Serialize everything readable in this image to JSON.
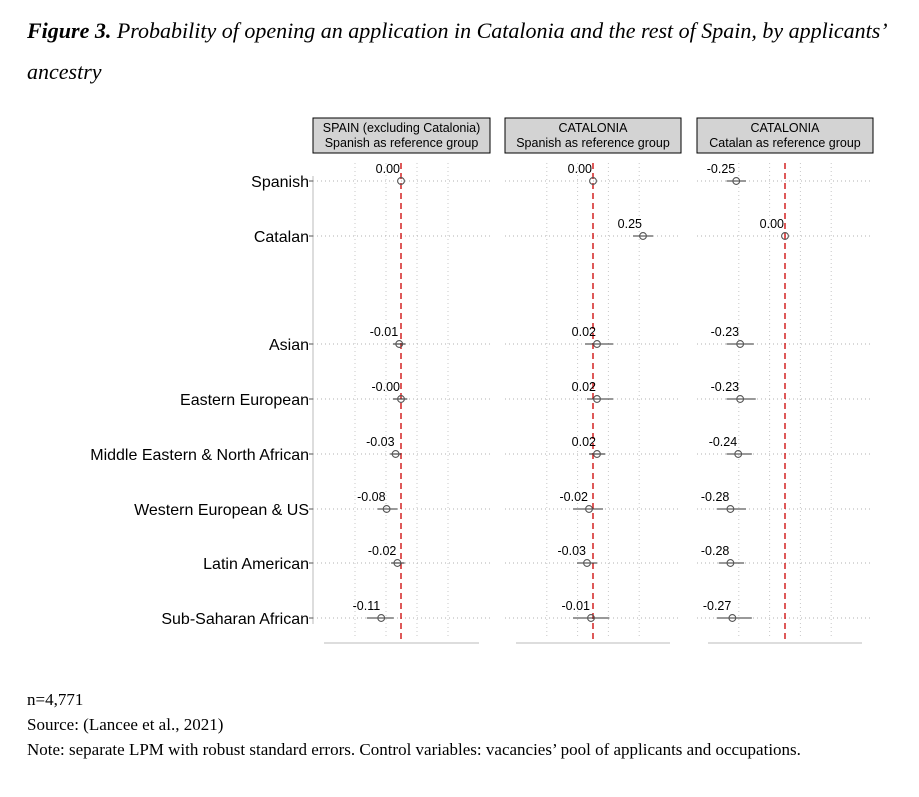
{
  "caption": {
    "label": "Figure 3.",
    "text": "Probability of opening an application in Catalonia and the rest of Spain, by applicants’ ancestry"
  },
  "chart_data": {
    "type": "scatter",
    "subtype": "coefficient-plot",
    "categories": [
      "Spanish",
      "Catalan",
      "Asian",
      "Eastern European",
      "Middle Eastern & North African",
      "Western European & US",
      "Latin American",
      "Sub-Saharan African"
    ],
    "reference_line": 0,
    "reference_line_color": "#cc0000",
    "marker_color": "#555555",
    "panels": [
      {
        "title_line1": "SPAIN (excluding Catalonia)",
        "title_line2": "Spanish as reference group",
        "points": [
          {
            "category": "Spanish",
            "value": 0.0,
            "label": "0.00",
            "ci_low": 0.0,
            "ci_high": 0.0
          },
          {
            "category": "Asian",
            "value": -0.01,
            "label": "-0.01",
            "ci_low": -0.045,
            "ci_high": 0.025
          },
          {
            "category": "Eastern European",
            "value": -0.0,
            "label": "-0.00",
            "ci_low": -0.045,
            "ci_high": 0.035
          },
          {
            "category": "Middle Eastern & North African",
            "value": -0.03,
            "label": "-0.03",
            "ci_low": -0.06,
            "ci_high": 0.0
          },
          {
            "category": "Western European & US",
            "value": -0.08,
            "label": "-0.08",
            "ci_low": -0.13,
            "ci_high": -0.02
          },
          {
            "category": "Latin American",
            "value": -0.02,
            "label": "-0.02",
            "ci_low": -0.055,
            "ci_high": 0.02
          },
          {
            "category": "Sub-Saharan African",
            "value": -0.11,
            "label": "-0.11",
            "ci_low": -0.19,
            "ci_high": -0.04
          }
        ]
      },
      {
        "title_line1": "CATALONIA",
        "title_line2": "Spanish as reference group",
        "points": [
          {
            "category": "Spanish",
            "value": 0.0,
            "label": "0.00",
            "ci_low": 0.0,
            "ci_high": 0.0
          },
          {
            "category": "Catalan",
            "value": 0.25,
            "label": "0.25",
            "ci_low": 0.2,
            "ci_high": 0.3
          },
          {
            "category": "Asian",
            "value": 0.02,
            "label": "0.02",
            "ci_low": -0.04,
            "ci_high": 0.1
          },
          {
            "category": "Eastern European",
            "value": 0.02,
            "label": "0.02",
            "ci_low": -0.03,
            "ci_high": 0.1
          },
          {
            "category": "Middle Eastern & North African",
            "value": 0.02,
            "label": "0.02",
            "ci_low": -0.02,
            "ci_high": 0.06
          },
          {
            "category": "Western European & US",
            "value": -0.02,
            "label": "-0.02",
            "ci_low": -0.1,
            "ci_high": 0.05
          },
          {
            "category": "Latin American",
            "value": -0.03,
            "label": "-0.03",
            "ci_low": -0.08,
            "ci_high": 0.02
          },
          {
            "category": "Sub-Saharan African",
            "value": -0.01,
            "label": "-0.01",
            "ci_low": -0.1,
            "ci_high": 0.08
          }
        ]
      },
      {
        "title_line1": "CATALONIA",
        "title_line2": "Catalan as reference group",
        "points": [
          {
            "category": "Spanish",
            "value": -0.25,
            "label": "-0.25",
            "ci_low": -0.3,
            "ci_high": -0.2
          },
          {
            "category": "Catalan",
            "value": 0.0,
            "label": "0.00",
            "ci_low": 0.0,
            "ci_high": 0.0
          },
          {
            "category": "Asian",
            "value": -0.23,
            "label": "-0.23",
            "ci_low": -0.3,
            "ci_high": -0.16
          },
          {
            "category": "Eastern European",
            "value": -0.23,
            "label": "-0.23",
            "ci_low": -0.3,
            "ci_high": -0.15
          },
          {
            "category": "Middle Eastern & North African",
            "value": -0.24,
            "label": "-0.24",
            "ci_low": -0.3,
            "ci_high": -0.17
          },
          {
            "category": "Western European & US",
            "value": -0.28,
            "label": "-0.28",
            "ci_low": -0.35,
            "ci_high": -0.2
          },
          {
            "category": "Latin American",
            "value": -0.28,
            "label": "-0.28",
            "ci_low": -0.34,
            "ci_high": -0.21
          },
          {
            "category": "Sub-Saharan African",
            "value": -0.27,
            "label": "-0.27",
            "ci_low": -0.35,
            "ci_high": -0.17
          }
        ]
      }
    ]
  },
  "notes": {
    "n": "n=4,771",
    "source": "Source: (Lancee et al., 2021)",
    "note": "Note: separate LPM with robust standard errors. Control variables: vacancies’ pool of applicants and occupations."
  }
}
